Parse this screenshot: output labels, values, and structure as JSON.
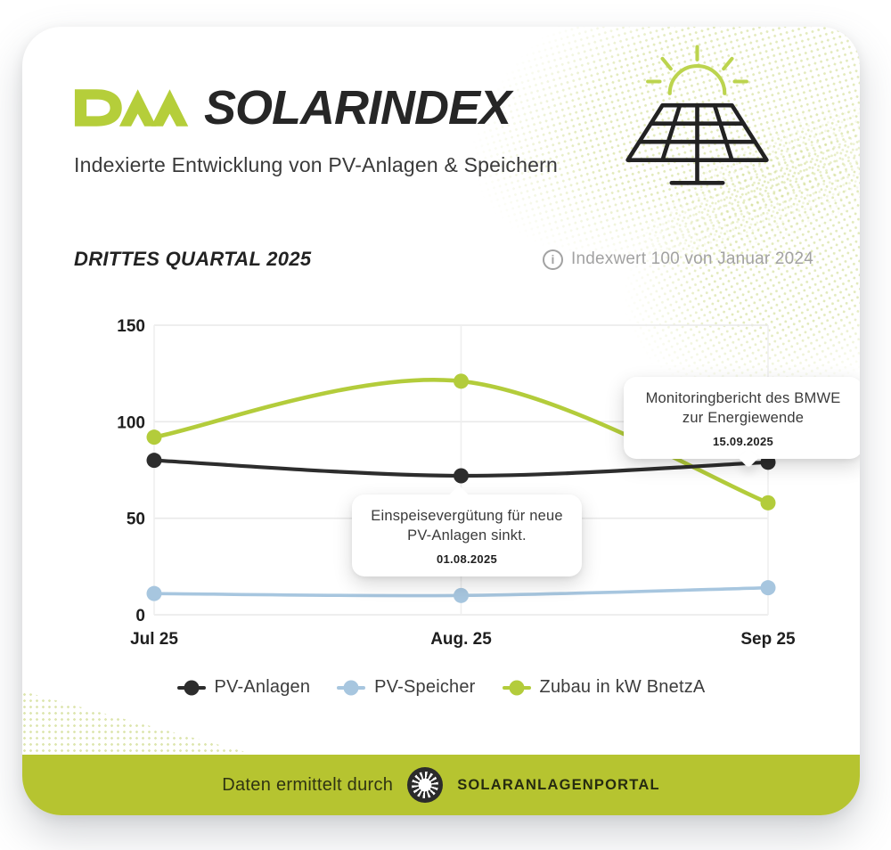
{
  "header": {
    "logo": "DAA",
    "title": "SOLARINDEX",
    "subtitle": "Indexierte Entwicklung von PV-Anlagen & Speichern"
  },
  "section": {
    "heading": "DRITTES QUARTAL 2025",
    "info_icon": "i",
    "info_note": "Indexwert 100 von Januar 2024"
  },
  "chart_data": {
    "type": "line",
    "categories": [
      "Jul 25",
      "Aug. 25",
      "Sep 25"
    ],
    "series": [
      {
        "name": "PV-Anlagen",
        "color": "#2d2d2d",
        "values": [
          80,
          72,
          79
        ]
      },
      {
        "name": "PV-Speicher",
        "color": "#a7c6df",
        "values": [
          11,
          10,
          14
        ]
      },
      {
        "name": "Zubau in kW BnetzA",
        "color": "#b3cc3b",
        "values": [
          92,
          121,
          58
        ]
      }
    ],
    "ylim": [
      0,
      150
    ],
    "yticks": [
      0,
      50,
      100,
      150
    ],
    "grid": true,
    "legend_position": "bottom",
    "smooth": true
  },
  "annotations": [
    {
      "text": "Einspeisevergütung für  neue PV-Anlagen sinkt.",
      "date": "01.08.2025",
      "anchor": "Aug. 25"
    },
    {
      "text": "Monitoringbericht des BMWE zur Energiewende",
      "date": "15.09.2025",
      "anchor": "Sep 25"
    }
  ],
  "footer": {
    "text": "Daten ermittelt durch",
    "brand": "SOLARANLAGENPORTAL"
  },
  "colors": {
    "accent_green": "#b3cc3b",
    "footer_green": "#b6c430",
    "halftone_green": "#ccd985",
    "ink": "#262626",
    "muted": "#a2a2a2"
  }
}
